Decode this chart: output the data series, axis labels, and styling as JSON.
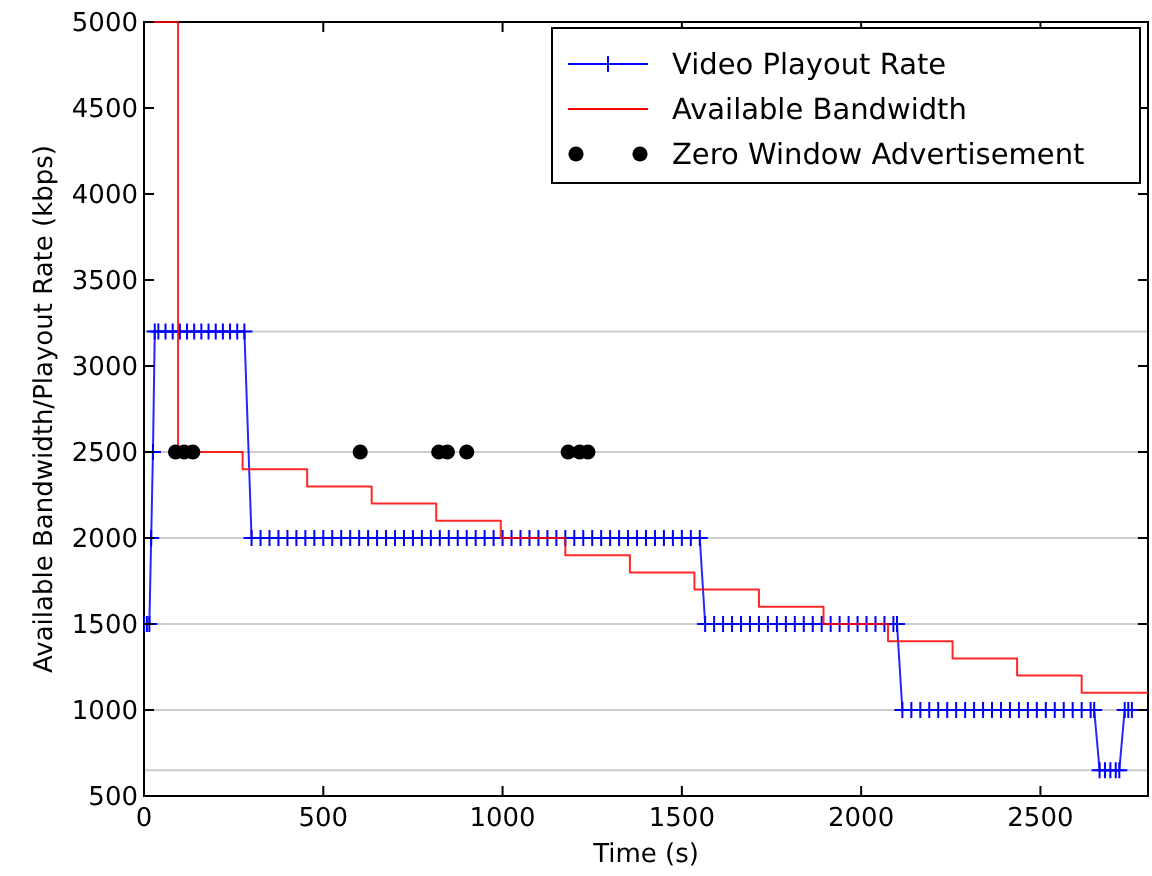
{
  "chart_data": {
    "type": "line",
    "xlabel": "Time (s)",
    "ylabel": "Available Bandwidth/Playout Rate (kbps)",
    "xlim": [
      0,
      2800
    ],
    "ylim": [
      500,
      5000
    ],
    "xticks": [
      0,
      500,
      1000,
      1500,
      2000,
      2500
    ],
    "yticks": [
      500,
      1000,
      1500,
      2000,
      2500,
      3000,
      3500,
      4000,
      4500,
      5000
    ],
    "legend": "top right",
    "ref_lines": [
      {
        "axis": "y",
        "value": 3200,
        "color": "#cccccc"
      },
      {
        "axis": "y",
        "value": 2500,
        "color": "#cccccc"
      },
      {
        "axis": "y",
        "value": 2000,
        "color": "#cccccc"
      },
      {
        "axis": "y",
        "value": 1500,
        "color": "#cccccc"
      },
      {
        "axis": "y",
        "value": 1000,
        "color": "#cccccc"
      },
      {
        "axis": "y",
        "value": 650,
        "color": "#cccccc"
      }
    ],
    "series": [
      {
        "name": "Video Playout Rate",
        "type": "line",
        "color": "#0000ff",
        "marker": "cross",
        "x": [
          0,
          8,
          15,
          20,
          25,
          30,
          40,
          60,
          80,
          100,
          120,
          140,
          160,
          180,
          200,
          220,
          240,
          260,
          280,
          300,
          325,
          350,
          375,
          400,
          425,
          450,
          475,
          500,
          525,
          550,
          575,
          600,
          625,
          650,
          675,
          700,
          725,
          750,
          775,
          800,
          825,
          850,
          875,
          900,
          925,
          950,
          975,
          1000,
          1025,
          1050,
          1075,
          1100,
          1125,
          1150,
          1175,
          1200,
          1225,
          1250,
          1275,
          1300,
          1325,
          1350,
          1375,
          1400,
          1425,
          1450,
          1475,
          1500,
          1525,
          1550,
          1565,
          1590,
          1615,
          1640,
          1665,
          1690,
          1715,
          1740,
          1765,
          1790,
          1815,
          1840,
          1865,
          1890,
          1915,
          1940,
          1965,
          1990,
          2015,
          2040,
          2065,
          2090,
          2100,
          2115,
          2140,
          2165,
          2190,
          2215,
          2240,
          2265,
          2290,
          2315,
          2340,
          2365,
          2390,
          2415,
          2440,
          2465,
          2490,
          2515,
          2540,
          2565,
          2590,
          2615,
          2640,
          2650,
          2665,
          2680,
          2695,
          2710,
          2720,
          2735,
          2745,
          2755
        ],
        "values": [
          1500,
          1500,
          1500,
          2000,
          2500,
          3200,
          3200,
          3200,
          3200,
          3200,
          3200,
          3200,
          3200,
          3200,
          3200,
          3200,
          3200,
          3200,
          3200,
          2000,
          2000,
          2000,
          2000,
          2000,
          2000,
          2000,
          2000,
          2000,
          2000,
          2000,
          2000,
          2000,
          2000,
          2000,
          2000,
          2000,
          2000,
          2000,
          2000,
          2000,
          2000,
          2000,
          2000,
          2000,
          2000,
          2000,
          2000,
          2000,
          2000,
          2000,
          2000,
          2000,
          2000,
          2000,
          2000,
          2000,
          2000,
          2000,
          2000,
          2000,
          2000,
          2000,
          2000,
          2000,
          2000,
          2000,
          2000,
          2000,
          2000,
          2000,
          1500,
          1500,
          1500,
          1500,
          1500,
          1500,
          1500,
          1500,
          1500,
          1500,
          1500,
          1500,
          1500,
          1500,
          1500,
          1500,
          1500,
          1500,
          1500,
          1500,
          1500,
          1500,
          1500,
          1000,
          1000,
          1000,
          1000,
          1000,
          1000,
          1000,
          1000,
          1000,
          1000,
          1000,
          1000,
          1000,
          1000,
          1000,
          1000,
          1000,
          1000,
          1000,
          1000,
          1000,
          1000,
          1000,
          650,
          650,
          650,
          650,
          650,
          1000,
          1000,
          1000
        ]
      },
      {
        "name": "Available Bandwidth",
        "type": "step",
        "color": "#ff0000",
        "marker": "none",
        "x": [
          0,
          95,
          275,
          455,
          635,
          815,
          995,
          1175,
          1355,
          1535,
          1715,
          1895,
          2075,
          2255,
          2435,
          2615,
          2800
        ],
        "values": [
          5000,
          2500,
          2400,
          2300,
          2200,
          2100,
          2000,
          1900,
          1800,
          1700,
          1600,
          1500,
          1400,
          1300,
          1200,
          1100,
          1100
        ]
      },
      {
        "name": "Zero Window Advertisement",
        "type": "scatter",
        "color": "#000000",
        "marker": "circle",
        "x": [
          88,
          112,
          136,
          603,
          822,
          846,
          900,
          1183,
          1215,
          1238
        ],
        "values": [
          2500,
          2500,
          2500,
          2500,
          2500,
          2500,
          2500,
          2500,
          2500,
          2500
        ]
      }
    ]
  }
}
